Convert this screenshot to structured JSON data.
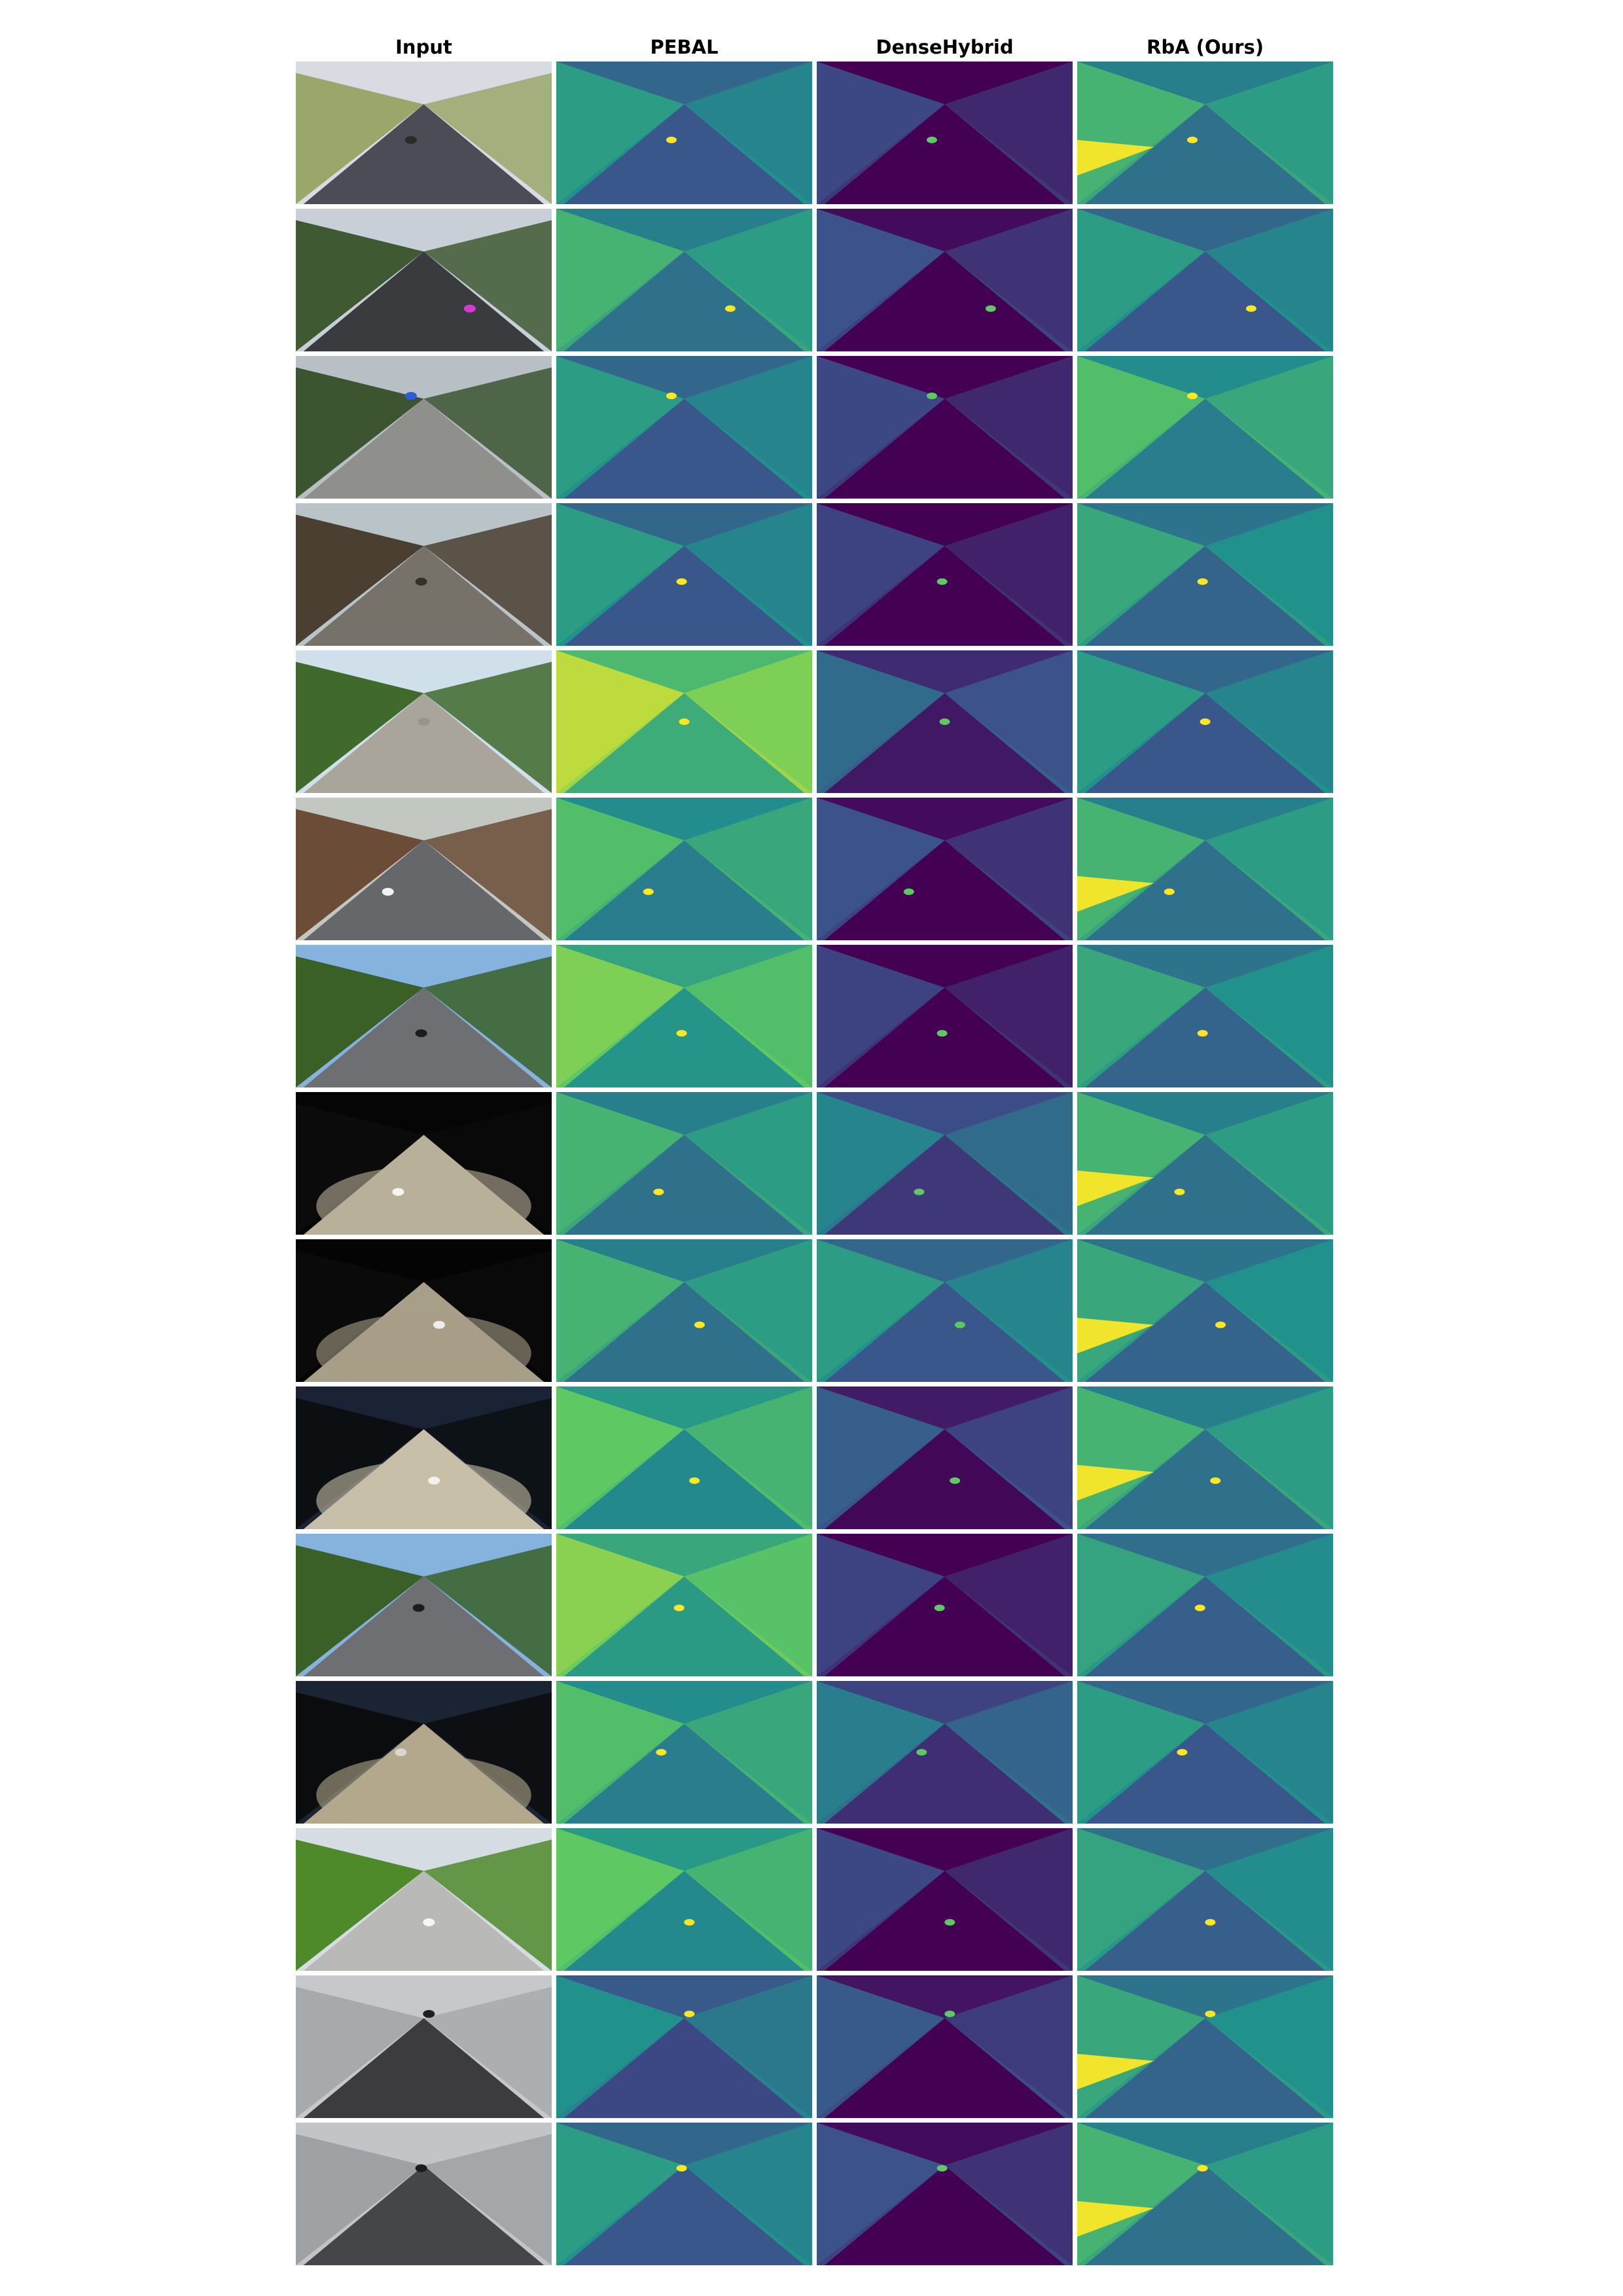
{
  "figure": {
    "columns": [
      {
        "key": "input",
        "label": "Input"
      },
      {
        "key": "pebal",
        "label": "PEBAL"
      },
      {
        "key": "densehybrid",
        "label": "DenseHybrid"
      },
      {
        "key": "rba",
        "label": "RbA (Ours)"
      }
    ],
    "colormap": {
      "name": "viridis",
      "stops": [
        "#440154",
        "#3b528b",
        "#21918c",
        "#5ec962",
        "#fde725"
      ]
    },
    "rows": [
      {
        "scene": "highway-noise-barrier",
        "sky": "#d8dce2",
        "side": "#9aa76a",
        "road": "#4a4d55",
        "obj": "#2a2a2a",
        "objx": 0.45,
        "objy": 0.55,
        "pebal": 0.45,
        "dh": 0.12,
        "rba": 0.55,
        "rbaEdge": true,
        "night": false
      },
      {
        "scene": "suburban-road-pink-object",
        "sky": "#c9cfd6",
        "side": "#3f5a33",
        "road": "#3a3b3f",
        "obj": "#d23ad2",
        "objx": 0.68,
        "objy": 0.7,
        "pebal": 0.55,
        "dh": 0.15,
        "rba": 0.45,
        "rbaEdge": false,
        "night": false
      },
      {
        "scene": "fenced-lane-blue-object",
        "sky": "#b8c0c6",
        "side": "#3c5530",
        "road": "#8f8f8c",
        "obj": "#2c5ad8",
        "objx": 0.45,
        "objy": 0.28,
        "pebal": 0.45,
        "dh": 0.12,
        "rba": 0.6,
        "rbaEdge": false,
        "night": false
      },
      {
        "scene": "brick-path-wooden-fence",
        "sky": "#b9c4c9",
        "side": "#4a3f30",
        "road": "#76726a",
        "obj": "#333028",
        "objx": 0.49,
        "objy": 0.55,
        "pebal": 0.45,
        "dh": 0.1,
        "rba": 0.5,
        "rbaEdge": false,
        "night": false
      },
      {
        "scene": "gravel-path-hedges",
        "sky": "#cfe0ea",
        "side": "#3f6a2c",
        "road": "#a9a59b",
        "obj": "#999488",
        "objx": 0.5,
        "objy": 0.5,
        "pebal": 0.8,
        "dh": 0.25,
        "rba": 0.45,
        "rbaEdge": false,
        "night": false
      },
      {
        "scene": "forest-road-white-object",
        "sky": "#c3c7c2",
        "side": "#6b4c36",
        "road": "#66676b",
        "obj": "#f2f2f2",
        "objx": 0.36,
        "objy": 0.66,
        "pebal": 0.6,
        "dh": 0.15,
        "rba": 0.55,
        "rbaEdge": true,
        "night": false
      },
      {
        "scene": "hedged-lane-dark-object",
        "sky": "#86b3de",
        "side": "#3a6028",
        "road": "#6d6f73",
        "obj": "#1c1c1c",
        "objx": 0.49,
        "objy": 0.62,
        "pebal": 0.7,
        "dh": 0.1,
        "rba": 0.5,
        "rbaEdge": false,
        "night": false
      },
      {
        "scene": "night-road-two-objects",
        "sky": "#050506",
        "side": "#0b0b0c",
        "road": "#b9b09a",
        "obj": "#f5f5f0",
        "objx": 0.4,
        "objy": 0.7,
        "pebal": 0.55,
        "dh": 0.35,
        "rba": 0.55,
        "rbaEdge": true,
        "night": true
      },
      {
        "scene": "night-road-distant-objects",
        "sky": "#040405",
        "side": "#0a0a0b",
        "road": "#a89f88",
        "obj": "#eeeeea",
        "objx": 0.56,
        "objy": 0.6,
        "pebal": 0.55,
        "dh": 0.45,
        "rba": 0.5,
        "rbaEdge": true,
        "night": true
      },
      {
        "scene": "dusk-road-headlights",
        "sky": "#1a2333",
        "side": "#0c0f12",
        "road": "#c8bfa8",
        "obj": "#f2f2ee",
        "objx": 0.54,
        "objy": 0.66,
        "pebal": 0.65,
        "dh": 0.2,
        "rba": 0.55,
        "rbaEdge": true,
        "night": true
      },
      {
        "scene": "hedged-lane-distant-object",
        "sky": "#86b3de",
        "side": "#3a6028",
        "road": "#6d6f73",
        "obj": "#1c1c1c",
        "objx": 0.48,
        "objy": 0.52,
        "pebal": 0.72,
        "dh": 0.1,
        "rba": 0.48,
        "rbaEdge": false,
        "night": false
      },
      {
        "scene": "night-road-horizon-light",
        "sky": "#1b2433",
        "side": "#0b0c0e",
        "road": "#b3a88c",
        "obj": "#d8d8d2",
        "objx": 0.41,
        "objy": 0.5,
        "pebal": 0.6,
        "dh": 0.32,
        "rba": 0.45,
        "rbaEdge": false,
        "night": true
      },
      {
        "scene": "rural-road-white-object",
        "sky": "#d6dde2",
        "side": "#4f8a2a",
        "road": "#b9b9b7",
        "obj": "#f6f6f6",
        "objx": 0.52,
        "objy": 0.66,
        "pebal": 0.65,
        "dh": 0.12,
        "rba": 0.48,
        "rbaEdge": false,
        "night": false
      },
      {
        "scene": "foggy-road-dark-object",
        "sky": "#c6c8cb",
        "side": "#a7aaad",
        "road": "#3c3c3e",
        "obj": "#1f1f1f",
        "objx": 0.52,
        "objy": 0.27,
        "pebal": 0.4,
        "dh": 0.18,
        "rba": 0.5,
        "rbaEdge": true,
        "night": false
      },
      {
        "scene": "foggy-road-small-object",
        "sky": "#c2c4c8",
        "side": "#9fa2a5",
        "road": "#45464a",
        "obj": "#1d1d1d",
        "objx": 0.49,
        "objy": 0.32,
        "pebal": 0.45,
        "dh": 0.15,
        "rba": 0.55,
        "rbaEdge": true,
        "night": false
      }
    ]
  }
}
